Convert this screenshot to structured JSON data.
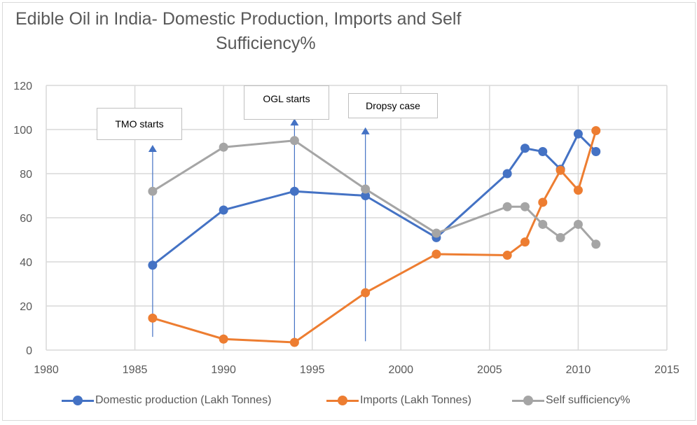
{
  "chart_data": {
    "type": "line",
    "title": "Edible Oil in India- Domestic Production, Imports and Self Sufficiency%",
    "title_lines": [
      "Edible Oil in India- Domestic Production, Imports and Self",
      "Sufficiency%"
    ],
    "xlabel": "",
    "ylabel": "",
    "xlim": [
      1980,
      2015
    ],
    "ylim": [
      0,
      120
    ],
    "x_ticks": [
      1980,
      1985,
      1990,
      1995,
      2000,
      2005,
      2010,
      2015
    ],
    "y_ticks": [
      0,
      20,
      40,
      60,
      80,
      100,
      120
    ],
    "grid": true,
    "legend_position": "bottom",
    "series": [
      {
        "name": "Domestic production (Lakh Tonnes)",
        "color": "#4472c4",
        "x": [
          1986,
          1990,
          1994,
          1998,
          2002,
          2006,
          2007,
          2008,
          2009,
          2010,
          2011
        ],
        "values": [
          38.5,
          63.5,
          72,
          70,
          51,
          80,
          91.5,
          90,
          82,
          98,
          90
        ]
      },
      {
        "name": "Imports (Lakh Tonnes)",
        "color": "#ed7d31",
        "x": [
          1986,
          1990,
          1994,
          1998,
          2002,
          2006,
          2007,
          2008,
          2009,
          2010,
          2011
        ],
        "values": [
          14.5,
          5,
          3.5,
          26,
          43.5,
          43,
          49,
          67,
          81.5,
          72.5,
          99.5
        ]
      },
      {
        "name": "Self sufficiency%",
        "color": "#a5a5a5",
        "x": [
          1986,
          1990,
          1994,
          1998,
          2002,
          2006,
          2007,
          2008,
          2009,
          2010,
          2011
        ],
        "values": [
          72,
          92,
          95,
          73,
          53,
          65,
          65,
          57,
          51,
          57,
          48
        ]
      }
    ],
    "annotations": [
      {
        "label": "TMO starts",
        "x": 1986,
        "arrow_from": 6,
        "arrow_to": 93
      },
      {
        "label": "OGL starts",
        "x": 1994,
        "arrow_from": 3,
        "arrow_to": 105
      },
      {
        "label": "Dropsy case",
        "x": 1998,
        "arrow_from": 4,
        "arrow_to": 101
      }
    ],
    "annotation_color": "#4472c4"
  }
}
